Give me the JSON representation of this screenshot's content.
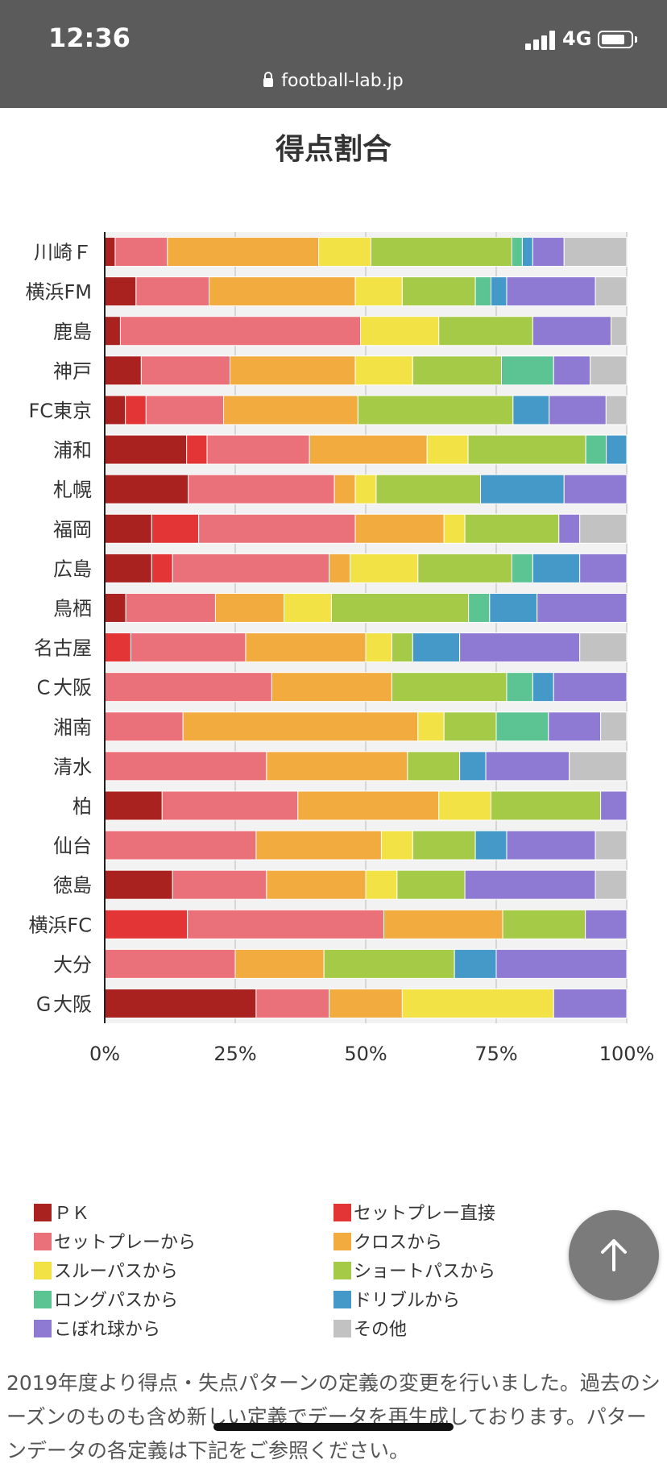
{
  "status_bar": {
    "time": "12:36",
    "network": "4G",
    "url": "football-lab.jp"
  },
  "chart_data": {
    "type": "bar",
    "orientation": "horizontal",
    "stacked": true,
    "normalized": true,
    "title": "得点割合",
    "xlim": [
      0,
      100
    ],
    "xticks": [
      "0%",
      "25%",
      "50%",
      "75%",
      "100%"
    ],
    "grid": true,
    "legend_position": "bottom",
    "categories": [
      "川崎Ｆ",
      "横浜FM",
      "鹿島",
      "神戸",
      "FC東京",
      "浦和",
      "札幌",
      "福岡",
      "広島",
      "鳥栖",
      "名古屋",
      "Ｃ大阪",
      "湘南",
      "清水",
      "柏",
      "仙台",
      "徳島",
      "横浜FC",
      "大分",
      "Ｇ大阪"
    ],
    "series": [
      {
        "name": "ＰＫ",
        "color": "#a92220",
        "values": [
          2,
          6,
          3,
          7,
          4,
          16,
          16,
          9,
          9,
          4,
          0,
          0,
          0,
          0,
          11,
          0,
          13,
          0,
          0,
          29
        ]
      },
      {
        "name": "セットプレー直接",
        "color": "#e33536",
        "values": [
          0,
          0,
          0,
          0,
          4,
          4,
          0,
          9,
          4,
          0,
          5,
          0,
          0,
          0,
          0,
          0,
          0,
          16,
          0,
          0
        ]
      },
      {
        "name": "セットプレーから",
        "color": "#ea7179",
        "values": [
          10,
          14,
          46,
          17,
          15,
          20,
          28,
          30,
          30,
          17,
          22,
          32,
          15,
          31,
          26,
          29,
          18,
          38,
          25,
          14
        ]
      },
      {
        "name": "クロスから",
        "color": "#f2ab3f",
        "values": [
          29,
          28,
          0,
          24,
          26,
          23,
          4,
          17,
          4,
          13,
          23,
          23,
          45,
          27,
          27,
          24,
          19,
          23,
          17,
          14
        ]
      },
      {
        "name": "スルーパスから",
        "color": "#f2e246",
        "values": [
          10,
          9,
          15,
          11,
          0,
          8,
          4,
          4,
          13,
          9,
          5,
          0,
          5,
          0,
          10,
          6,
          6,
          0,
          0,
          29
        ]
      },
      {
        "name": "ショートパスから",
        "color": "#a4ca47",
        "values": [
          27,
          14,
          18,
          17,
          30,
          23,
          20,
          18,
          18,
          26,
          4,
          22,
          10,
          10,
          21,
          12,
          13,
          16,
          25,
          0
        ]
      },
      {
        "name": "ロングパスから",
        "color": "#5cc393",
        "values": [
          2,
          3,
          0,
          10,
          0,
          4,
          0,
          0,
          4,
          4,
          0,
          5,
          10,
          0,
          0,
          0,
          0,
          0,
          0,
          0
        ]
      },
      {
        "name": "ドリブルから",
        "color": "#4499c9",
        "values": [
          2,
          3,
          0,
          0,
          7,
          4,
          16,
          0,
          9,
          9,
          9,
          4,
          0,
          5,
          0,
          6,
          0,
          0,
          8,
          0
        ]
      },
      {
        "name": "こぼれ球から",
        "color": "#8e7ad3",
        "values": [
          6,
          17,
          15,
          7,
          11,
          0,
          12,
          4,
          9,
          17,
          23,
          14,
          10,
          16,
          5,
          17,
          25,
          8,
          25,
          14
        ]
      },
      {
        "name": "その他",
        "color": "#c2c2c2",
        "values": [
          12,
          6,
          3,
          7,
          4,
          0,
          0,
          9,
          0,
          0,
          9,
          0,
          5,
          11,
          0,
          6,
          6,
          0,
          0,
          0
        ]
      }
    ]
  },
  "back_to_top": {
    "icon": "arrow-up-icon"
  },
  "note": "2019年度より得点・失点パターンの定義の変更を行いました。過去のシーズンのものも含め新しい定義でデータを再生成しております。パターンデータの各定義は下記をご参照ください。"
}
